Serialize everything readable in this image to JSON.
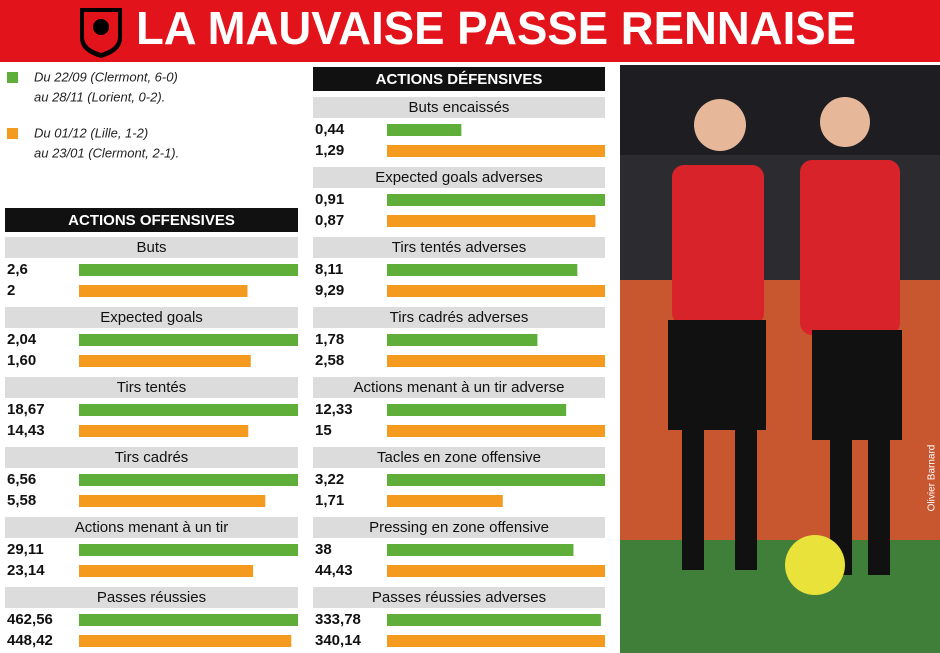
{
  "title": "LA MAUVAISE PASSE RENNAISE",
  "legend": [
    {
      "lines": [
        "Du 22/09 (Clermont, 6-0)",
        "au 28/11 (Lorient, 0-2)."
      ],
      "color": "#5fae3a"
    },
    {
      "lines": [
        "Du 01/12 (Lille, 1-2)",
        "au 23/01 (Clermont, 2-1)."
      ],
      "color": "#f39a1f"
    }
  ],
  "photo_credit": "Olivier Barnard",
  "sections": [
    {
      "title": "ACTIONS OFFENSIVES",
      "chart_data": [
        {
          "type": "bar",
          "title": "Buts",
          "values": [
            2.6,
            2
          ],
          "value_labels": [
            "2,6",
            "2"
          ]
        },
        {
          "type": "bar",
          "title": "Expected goals",
          "values": [
            2.04,
            1.6
          ],
          "value_labels": [
            "2,04",
            "1,60"
          ]
        },
        {
          "type": "bar",
          "title": "Tirs tentés",
          "values": [
            18.67,
            14.43
          ],
          "value_labels": [
            "18,67",
            "14,43"
          ]
        },
        {
          "type": "bar",
          "title": "Tirs cadrés",
          "values": [
            6.56,
            5.58
          ],
          "value_labels": [
            "6,56",
            "5,58"
          ]
        },
        {
          "type": "bar",
          "title": "Actions menant à un tir",
          "values": [
            29.11,
            23.14
          ],
          "value_labels": [
            "29,11",
            "23,14"
          ]
        },
        {
          "type": "bar",
          "title": "Passes réussies",
          "values": [
            462.56,
            448.42
          ],
          "value_labels": [
            "462,56",
            "448,42"
          ]
        }
      ]
    },
    {
      "title": "ACTIONS DÉFENSIVES",
      "chart_data": [
        {
          "type": "bar",
          "title": "Buts encaissés",
          "values": [
            0.44,
            1.29
          ],
          "value_labels": [
            "0,44",
            "1,29"
          ]
        },
        {
          "type": "bar",
          "title": "Expected goals adverses",
          "values": [
            0.91,
            0.87
          ],
          "value_labels": [
            "0,91",
            "0,87"
          ]
        },
        {
          "type": "bar",
          "title": "Tirs tentés adverses",
          "values": [
            8.11,
            9.29
          ],
          "value_labels": [
            "8,11",
            "9,29"
          ]
        },
        {
          "type": "bar",
          "title": "Tirs cadrés adverses",
          "values": [
            1.78,
            2.58
          ],
          "value_labels": [
            "1,78",
            "2,58"
          ]
        },
        {
          "type": "bar",
          "title": "Actions menant à un tir adverse",
          "values": [
            12.33,
            15
          ],
          "value_labels": [
            "12,33",
            "15"
          ]
        },
        {
          "type": "bar",
          "title": "Tacles en zone offensive",
          "values": [
            3.22,
            1.71
          ],
          "value_labels": [
            "3,22",
            "1,71"
          ]
        },
        {
          "type": "bar",
          "title": "Pressing en zone offensive",
          "values": [
            38,
            44.43
          ],
          "value_labels": [
            "38",
            "44,43"
          ]
        },
        {
          "type": "bar",
          "title": "Passes réussies adverses",
          "values": [
            333.78,
            340.14
          ],
          "value_labels": [
            "333,78",
            "340,14"
          ]
        }
      ]
    }
  ]
}
